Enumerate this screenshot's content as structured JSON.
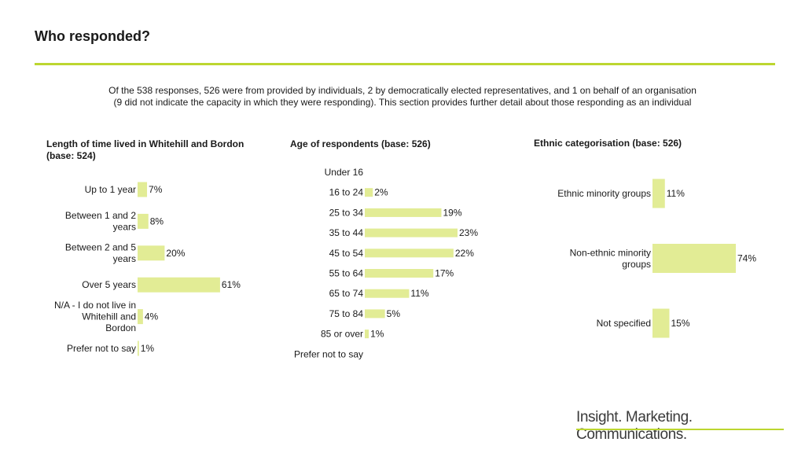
{
  "page": {
    "title": "Who responded?",
    "intro_line1": "Of the 538 responses, 526 were from provided by individuals, 2 by democratically elected representatives, and 1 on behalf of an organisation",
    "intro_line2": "(9 did not indicate the capacity in which they were responding). This section provides further detail about those responding as an individual",
    "footer": "Insight. Marketing. Communications.",
    "accent_color": "#bcd630",
    "bar_color": "#e2ec95"
  },
  "chart_data": [
    {
      "type": "bar",
      "orientation": "horizontal",
      "title": "Length of time lived in Whitehill and Bordon (base: 524)",
      "title_lines": [
        "Length of time lived in Whitehill and Bordon",
        "(base: 524)"
      ],
      "categories": [
        "Up to 1 year",
        "Between 1 and 2 years",
        "Between 2 and 5 years",
        "Over 5 years",
        "N/A - I do not live in Whitehill and Bordon",
        "Prefer not to say"
      ],
      "category_lines": [
        [
          "Up to 1 year"
        ],
        [
          "Between 1 and 2",
          "years"
        ],
        [
          "Between 2 and 5",
          "years"
        ],
        [
          "Over 5 years"
        ],
        [
          "N/A - I do not live in",
          "Whitehill and",
          "Bordon"
        ],
        [
          "Prefer not to say"
        ]
      ],
      "values": [
        7,
        8,
        20,
        61,
        4,
        1
      ],
      "labels": [
        "7%",
        "8%",
        "20%",
        "61%",
        "4%",
        "1%"
      ],
      "unit": "%"
    },
    {
      "type": "bar",
      "orientation": "horizontal",
      "title": "Age of respondents (base: 526)",
      "title_lines": [
        "Age of respondents (base: 526)"
      ],
      "categories": [
        "Under 16",
        "16 to 24",
        "25 to 34",
        "35 to 44",
        "45 to 54",
        "55 to 64",
        "65 to 74",
        "75 to 84",
        "85 or over",
        "Prefer not to say"
      ],
      "category_lines": [
        [
          "Under 16"
        ],
        [
          "16 to 24"
        ],
        [
          "25 to 34"
        ],
        [
          "35 to 44"
        ],
        [
          "45 to 54"
        ],
        [
          "55 to 64"
        ],
        [
          "65 to 74"
        ],
        [
          "75 to 84"
        ],
        [
          "85 or over"
        ],
        [
          "Prefer not to say"
        ]
      ],
      "values": [
        0,
        2,
        19,
        23,
        22,
        17,
        11,
        5,
        1,
        0
      ],
      "labels": [
        "",
        "2%",
        "19%",
        "23%",
        "22%",
        "17%",
        "11%",
        "5%",
        "1%",
        ""
      ],
      "unit": "%"
    },
    {
      "type": "bar",
      "orientation": "horizontal",
      "title": "Ethnic categorisation (base: 526)",
      "title_lines": [
        "Ethnic categorisation (base: 526)"
      ],
      "categories": [
        "Ethnic minority groups",
        "Non-ethnic minority groups",
        "Not specified"
      ],
      "category_lines": [
        [
          "Ethnic minority groups"
        ],
        [
          "Non-ethnic minority",
          "groups"
        ],
        [
          "Not specified"
        ]
      ],
      "values": [
        11,
        74,
        15
      ],
      "labels": [
        "11%",
        "74%",
        "15%"
      ],
      "unit": "%"
    }
  ]
}
